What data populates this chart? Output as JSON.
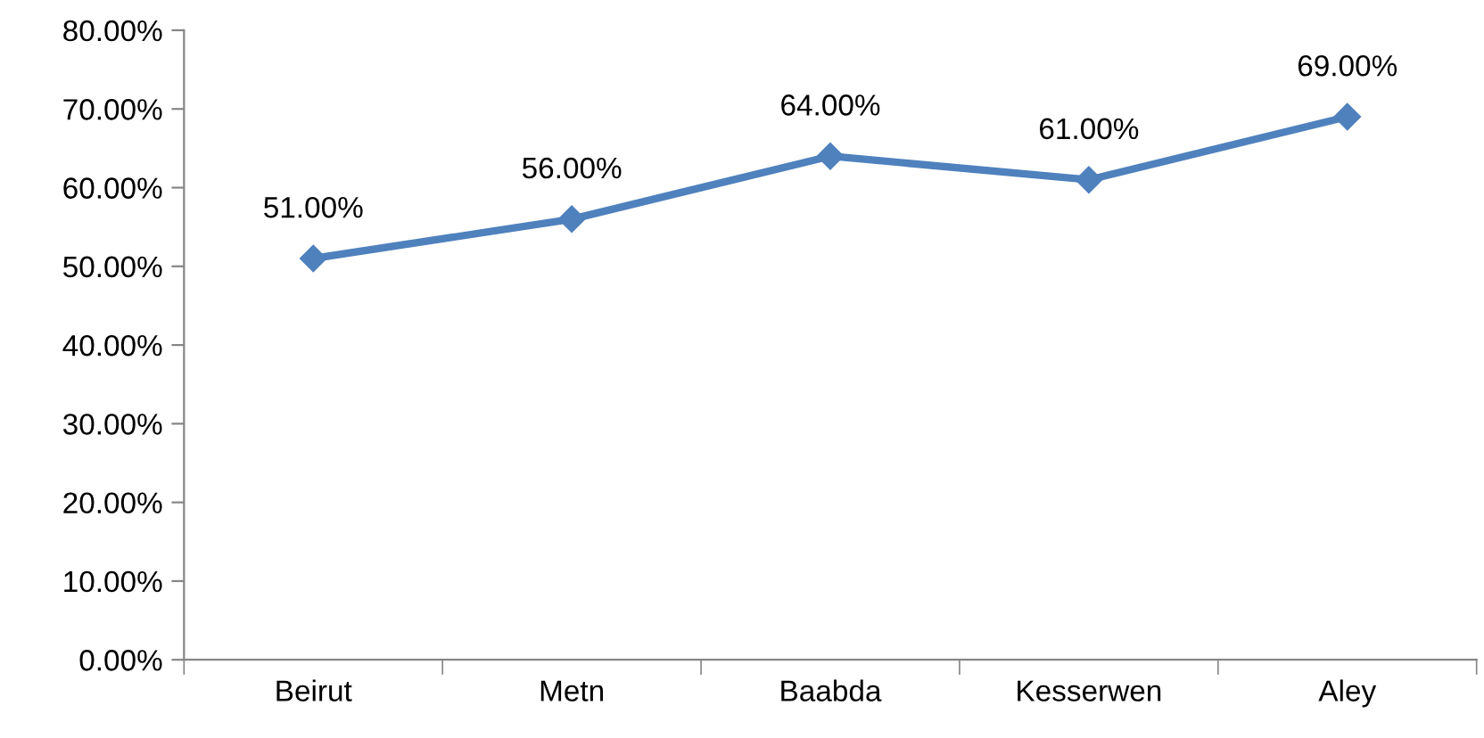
{
  "chart_data": {
    "type": "line",
    "categories": [
      "Beirut",
      "Metn",
      "Baabda",
      "Kesserwen",
      "Aley"
    ],
    "series": [
      {
        "color": "#4f81bd",
        "values": [
          51,
          56,
          64,
          61,
          69
        ],
        "value_labels": [
          "51.00%",
          "56.00%",
          "64.00%",
          "61.00%",
          "69.00%"
        ]
      }
    ],
    "ylim": [
      0,
      80
    ],
    "yticks": [
      {
        "value": 0,
        "label": "0.00%"
      },
      {
        "value": 10,
        "label": "10.00%"
      },
      {
        "value": 20,
        "label": "20.00%"
      },
      {
        "value": 30,
        "label": "30.00%"
      },
      {
        "value": 40,
        "label": "40.00%"
      },
      {
        "value": 50,
        "label": "50.00%"
      },
      {
        "value": 60,
        "label": "60.00%"
      },
      {
        "value": 70,
        "label": "70.00%"
      },
      {
        "value": 80,
        "label": "80.00%"
      }
    ],
    "grid": false,
    "legend": false,
    "marker": "diamond",
    "line_style": "solid"
  }
}
